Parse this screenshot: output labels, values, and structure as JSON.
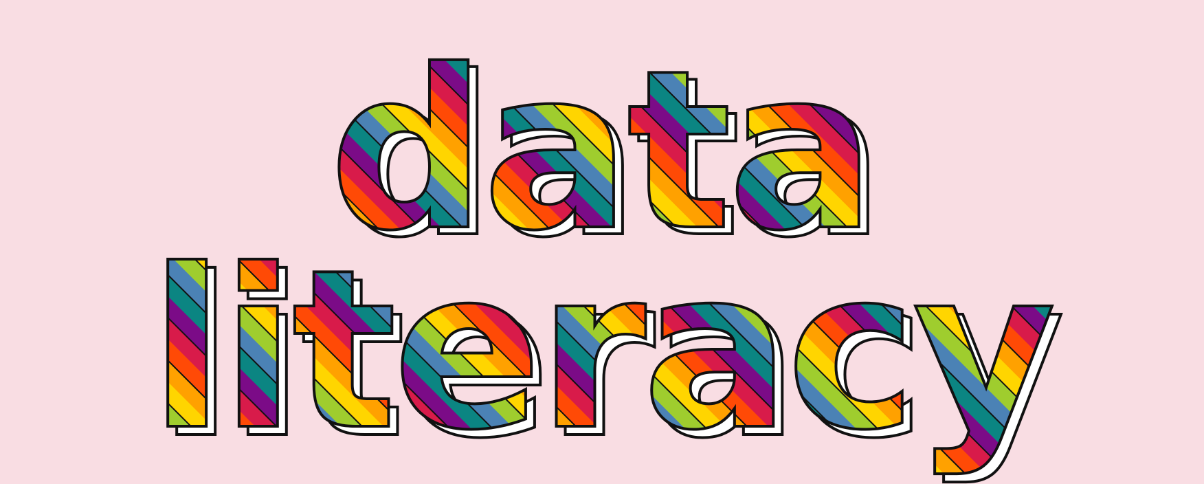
{
  "artwork": {
    "line1": "data",
    "line2": "literacy"
  },
  "colors": {
    "background": "#f9dde3",
    "outline": "#111111",
    "shadow": "#ffffff",
    "stripes": [
      "#d81b4a",
      "#7b0b87",
      "#0b8582",
      "#4b82b5",
      "#9fcd2e",
      "#ffd500",
      "#ffa100",
      "#ff4a06"
    ]
  }
}
